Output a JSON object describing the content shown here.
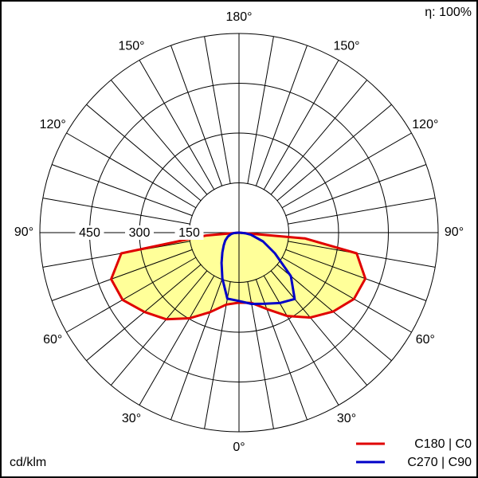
{
  "chart_data": {
    "type": "polar",
    "efficiency_label": "η: 100%",
    "unit_label": "cd/klm",
    "fill_color": "#ffff99",
    "rlim": [
      0,
      600
    ],
    "rticks": [
      150,
      300,
      450
    ],
    "angle_grid_step": 10,
    "angle_ticks_axis": [
      {
        "value": 180,
        "label": "180°"
      },
      {
        "value": 0,
        "label": "0°"
      }
    ],
    "angle_ticks_left": [
      {
        "value": 150,
        "label": "150°"
      },
      {
        "value": 120,
        "label": "120°"
      },
      {
        "value": 90,
        "label": "90°"
      },
      {
        "value": 60,
        "label": "60°"
      },
      {
        "value": 30,
        "label": "30°"
      }
    ],
    "angle_ticks_right": [
      {
        "value": 150,
        "label": "150°"
      },
      {
        "value": 120,
        "label": "120°"
      },
      {
        "value": 90,
        "label": "90°"
      },
      {
        "value": 60,
        "label": "60°"
      },
      {
        "value": 30,
        "label": "30°"
      }
    ],
    "angles": [
      -90,
      -85,
      -80,
      -70,
      -60,
      -50,
      -40,
      -30,
      -20,
      -10,
      0,
      10,
      20,
      30,
      40,
      50,
      60,
      70,
      80,
      85,
      90
    ],
    "series": [
      {
        "name": "C180 | C0",
        "color": "#e00000",
        "filled": true,
        "values": [
          0,
          100,
          360,
          410,
          405,
          372,
          341,
          298,
          255,
          220,
          211,
          215,
          245,
          290,
          334,
          370,
          400,
          405,
          360,
          200,
          0
        ]
      },
      {
        "name": "C270 | C90",
        "color": "#0000c8",
        "filled": false,
        "values": [
          0,
          15,
          24,
          36,
          48,
          60,
          78,
          105,
          147,
          202,
          206,
          218,
          228,
          245,
          261,
          204,
          125,
          77,
          36,
          18,
          0
        ]
      }
    ]
  }
}
